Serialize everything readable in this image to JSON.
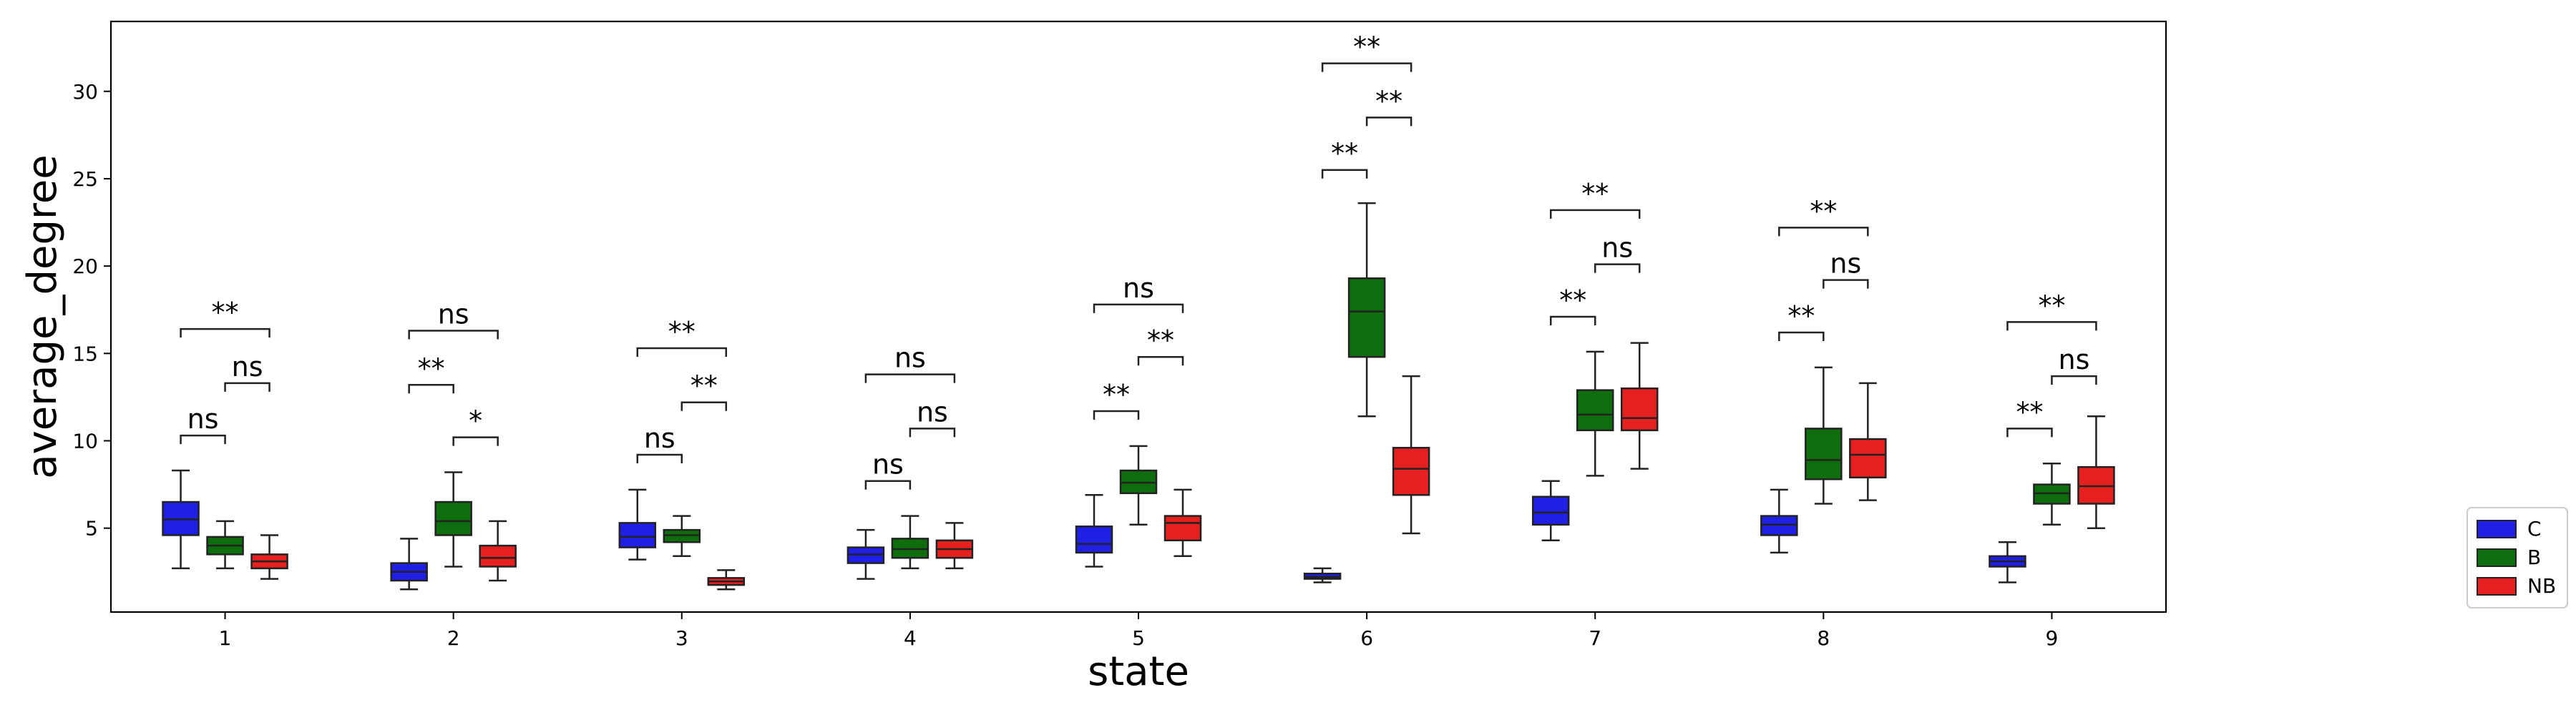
{
  "chart_data": {
    "type": "boxplot",
    "title": "",
    "xlabel": "state",
    "ylabel": "average_degree",
    "ylim": [
      0.2,
      34
    ],
    "yticks": [
      5,
      10,
      15,
      20,
      25,
      30
    ],
    "categories": [
      "1",
      "2",
      "3",
      "4",
      "5",
      "6",
      "7",
      "8",
      "9"
    ],
    "legend_position": "lower-right-outside",
    "series": [
      {
        "name": "C",
        "color": "#1f1fe6",
        "boxes": [
          {
            "whislo": 2.7,
            "q1": 4.6,
            "med": 5.5,
            "q3": 6.5,
            "whishi": 8.3
          },
          {
            "whislo": 1.5,
            "q1": 2.0,
            "med": 2.5,
            "q3": 3.0,
            "whishi": 4.4
          },
          {
            "whislo": 3.2,
            "q1": 3.9,
            "med": 4.5,
            "q3": 5.3,
            "whishi": 7.2
          },
          {
            "whislo": 2.1,
            "q1": 3.0,
            "med": 3.5,
            "q3": 3.9,
            "whishi": 4.9
          },
          {
            "whislo": 2.8,
            "q1": 3.6,
            "med": 4.1,
            "q3": 5.1,
            "whishi": 6.9
          },
          {
            "whislo": 1.9,
            "q1": 2.1,
            "med": 2.2,
            "q3": 2.4,
            "whishi": 2.7
          },
          {
            "whislo": 4.3,
            "q1": 5.2,
            "med": 5.9,
            "q3": 6.8,
            "whishi": 7.7
          },
          {
            "whislo": 3.6,
            "q1": 4.6,
            "med": 5.2,
            "q3": 5.7,
            "whishi": 7.2
          },
          {
            "whislo": 1.9,
            "q1": 2.8,
            "med": 3.1,
            "q3": 3.4,
            "whishi": 4.2
          }
        ]
      },
      {
        "name": "B",
        "color": "#0e6e0e",
        "boxes": [
          {
            "whislo": 2.7,
            "q1": 3.5,
            "med": 4.0,
            "q3": 4.5,
            "whishi": 5.4
          },
          {
            "whislo": 2.8,
            "q1": 4.6,
            "med": 5.4,
            "q3": 6.5,
            "whishi": 8.2
          },
          {
            "whislo": 3.4,
            "q1": 4.2,
            "med": 4.6,
            "q3": 4.9,
            "whishi": 5.7
          },
          {
            "whislo": 2.7,
            "q1": 3.3,
            "med": 3.8,
            "q3": 4.4,
            "whishi": 5.7
          },
          {
            "whislo": 5.2,
            "q1": 7.0,
            "med": 7.6,
            "q3": 8.3,
            "whishi": 9.7
          },
          {
            "whislo": 11.4,
            "q1": 14.8,
            "med": 17.4,
            "q3": 19.3,
            "whishi": 23.6
          },
          {
            "whislo": 8.0,
            "q1": 10.6,
            "med": 11.5,
            "q3": 12.9,
            "whishi": 15.1
          },
          {
            "whislo": 6.4,
            "q1": 7.8,
            "med": 8.9,
            "q3": 10.7,
            "whishi": 14.2
          },
          {
            "whislo": 5.2,
            "q1": 6.4,
            "med": 7.0,
            "q3": 7.5,
            "whishi": 8.7
          }
        ]
      },
      {
        "name": "NB",
        "color": "#e61f1f",
        "boxes": [
          {
            "whislo": 2.1,
            "q1": 2.7,
            "med": 3.1,
            "q3": 3.5,
            "whishi": 4.6
          },
          {
            "whislo": 2.0,
            "q1": 2.8,
            "med": 3.3,
            "q3": 4.0,
            "whishi": 5.4
          },
          {
            "whislo": 1.5,
            "q1": 1.75,
            "med": 1.95,
            "q3": 2.15,
            "whishi": 2.6
          },
          {
            "whislo": 2.7,
            "q1": 3.3,
            "med": 3.8,
            "q3": 4.3,
            "whishi": 5.3
          },
          {
            "whislo": 3.4,
            "q1": 4.3,
            "med": 5.3,
            "q3": 5.7,
            "whishi": 7.2
          },
          {
            "whislo": 4.7,
            "q1": 6.9,
            "med": 8.4,
            "q3": 9.6,
            "whishi": 13.7
          },
          {
            "whislo": 8.4,
            "q1": 10.6,
            "med": 11.3,
            "q3": 13.0,
            "whishi": 15.6
          },
          {
            "whislo": 6.6,
            "q1": 7.9,
            "med": 9.2,
            "q3": 10.1,
            "whishi": 13.3
          },
          {
            "whislo": 5.0,
            "q1": 6.4,
            "med": 7.4,
            "q3": 8.5,
            "whishi": 11.4
          }
        ]
      }
    ],
    "annotations": [
      {
        "category": "1",
        "from": "C",
        "to": "B",
        "y": 10.3,
        "label": "ns"
      },
      {
        "category": "1",
        "from": "B",
        "to": "NB",
        "y": 13.3,
        "label": "ns"
      },
      {
        "category": "1",
        "from": "C",
        "to": "NB",
        "y": 16.4,
        "label": "**"
      },
      {
        "category": "2",
        "from": "C",
        "to": "B",
        "y": 13.2,
        "label": "**"
      },
      {
        "category": "2",
        "from": "B",
        "to": "NB",
        "y": 10.2,
        "label": "*"
      },
      {
        "category": "2",
        "from": "C",
        "to": "NB",
        "y": 16.3,
        "label": "ns"
      },
      {
        "category": "3",
        "from": "C",
        "to": "B",
        "y": 9.2,
        "label": "ns"
      },
      {
        "category": "3",
        "from": "B",
        "to": "NB",
        "y": 12.2,
        "label": "**"
      },
      {
        "category": "3",
        "from": "C",
        "to": "NB",
        "y": 15.3,
        "label": "**"
      },
      {
        "category": "4",
        "from": "C",
        "to": "B",
        "y": 7.7,
        "label": "ns"
      },
      {
        "category": "4",
        "from": "B",
        "to": "NB",
        "y": 10.7,
        "label": "ns"
      },
      {
        "category": "4",
        "from": "C",
        "to": "NB",
        "y": 13.8,
        "label": "ns"
      },
      {
        "category": "5",
        "from": "C",
        "to": "B",
        "y": 11.7,
        "label": "**"
      },
      {
        "category": "5",
        "from": "B",
        "to": "NB",
        "y": 14.8,
        "label": "**"
      },
      {
        "category": "5",
        "from": "C",
        "to": "NB",
        "y": 17.8,
        "label": "ns"
      },
      {
        "category": "6",
        "from": "C",
        "to": "B",
        "y": 25.5,
        "label": "**"
      },
      {
        "category": "6",
        "from": "B",
        "to": "NB",
        "y": 28.5,
        "label": "**"
      },
      {
        "category": "6",
        "from": "C",
        "to": "NB",
        "y": 31.6,
        "label": "**"
      },
      {
        "category": "7",
        "from": "C",
        "to": "B",
        "y": 17.1,
        "label": "**"
      },
      {
        "category": "7",
        "from": "B",
        "to": "NB",
        "y": 20.1,
        "label": "ns"
      },
      {
        "category": "7",
        "from": "C",
        "to": "NB",
        "y": 23.2,
        "label": "**"
      },
      {
        "category": "8",
        "from": "C",
        "to": "B",
        "y": 16.2,
        "label": "**"
      },
      {
        "category": "8",
        "from": "B",
        "to": "NB",
        "y": 19.2,
        "label": "ns"
      },
      {
        "category": "8",
        "from": "C",
        "to": "NB",
        "y": 22.2,
        "label": "**"
      },
      {
        "category": "9",
        "from": "C",
        "to": "B",
        "y": 10.7,
        "label": "**"
      },
      {
        "category": "9",
        "from": "B",
        "to": "NB",
        "y": 13.7,
        "label": "ns"
      },
      {
        "category": "9",
        "from": "C",
        "to": "NB",
        "y": 16.8,
        "label": "**"
      }
    ]
  }
}
